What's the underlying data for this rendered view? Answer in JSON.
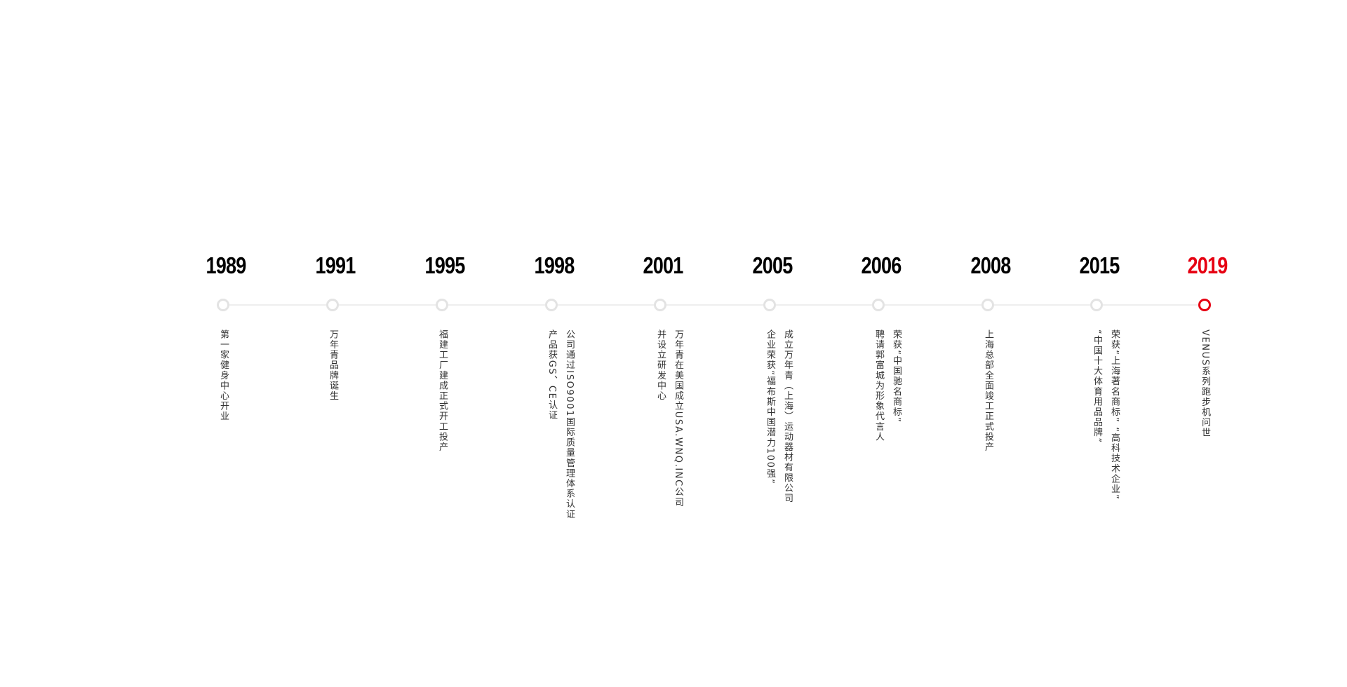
{
  "accent_color": "#e60012",
  "timeline": [
    {
      "year": "1989",
      "text": "第一家健身中心开业"
    },
    {
      "year": "1991",
      "text": "万年青品牌诞生"
    },
    {
      "year": "1995",
      "text": "福建工厂建成正式开工投产"
    },
    {
      "year": "1998",
      "text": "公司通过ISO9001国际质量管理体系认证\n产品获GS、CE认证"
    },
    {
      "year": "2001",
      "text": "万年青在美国成立USA.WNQ.INC公司\n并设立研发中心"
    },
    {
      "year": "2005",
      "text": "成立万年青（上海）运动器材有限公司\n企业荣获“福布斯中国潜力100强”"
    },
    {
      "year": "2006",
      "text": "荣获“中国驰名商标”\n聘请郭富城为形象代言人"
    },
    {
      "year": "2008",
      "text": "上海总部全面竣工正式投产"
    },
    {
      "year": "2015",
      "text": "荣获“上海著名商标” “高科技术企业”\n“中国十大体育用品品牌”"
    },
    {
      "year": "2019",
      "text": "VENUS系列跑步机问世",
      "active": true
    }
  ]
}
